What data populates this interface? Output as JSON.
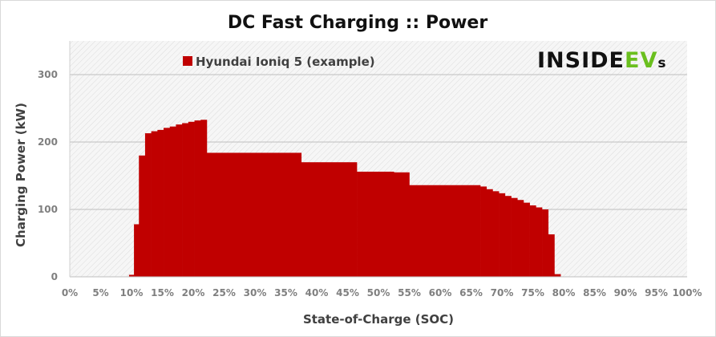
{
  "chart_data": {
    "type": "area",
    "title": "DC Fast Charging :: Power",
    "xlabel": "State-of-Charge  (SOC)",
    "ylabel": "Charging Power (kW)",
    "xlim": [
      0,
      100
    ],
    "ylim": [
      0,
      350
    ],
    "x_ticks": [
      0,
      5,
      10,
      15,
      20,
      25,
      30,
      35,
      40,
      45,
      50,
      55,
      60,
      65,
      70,
      75,
      80,
      85,
      90,
      95,
      100
    ],
    "x_tick_labels": [
      "0%",
      "5%",
      "10%",
      "15%",
      "20%",
      "25%",
      "30%",
      "35%",
      "40%",
      "45%",
      "50%",
      "55%",
      "60%",
      "65%",
      "70%",
      "75%",
      "80%",
      "85%",
      "90%",
      "95%",
      "100%"
    ],
    "y_ticks": [
      0,
      100,
      200,
      300
    ],
    "y_tick_labels": [
      "0",
      "100",
      "200",
      "300"
    ],
    "grid": true,
    "legend": "top-left",
    "series": [
      {
        "name": "Hyundai Ioniq 5 (example)",
        "color": "#c00000",
        "x": [
          9.6,
          10.4,
          11.2,
          12.2,
          13.2,
          14.2,
          15.2,
          16.2,
          17.2,
          18.2,
          19.2,
          20.2,
          21.2,
          22.2,
          25,
          30,
          35,
          37.5,
          40,
          45,
          46.5,
          50,
          52.5,
          54,
          55,
          60,
          65,
          66.5,
          67.5,
          68.5,
          69.5,
          70.5,
          71.5,
          72.5,
          73.5,
          74.5,
          75.5,
          76.5,
          77.5,
          78.5,
          79.5,
          80.5
        ],
        "y": [
          3,
          78,
          180,
          213,
          216,
          218,
          221,
          223,
          226,
          228,
          230,
          232,
          233,
          184,
          184,
          184,
          184,
          170,
          170,
          170,
          156,
          156,
          155,
          155,
          136,
          136,
          136,
          134,
          130,
          127,
          124,
          120,
          117,
          114,
          110,
          106,
          103,
          100,
          63,
          4,
          0,
          0
        ]
      }
    ]
  },
  "branding": {
    "logo_prefix": "INSIDE",
    "logo_ev": "EV",
    "logo_suffix": "s"
  }
}
